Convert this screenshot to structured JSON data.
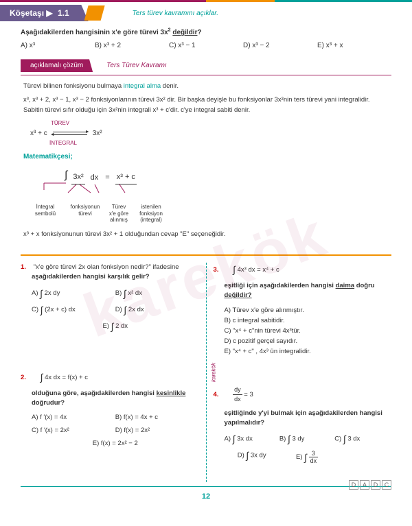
{
  "colors": {
    "brand": "#6a5b8e",
    "accent1": "#a01b5c",
    "accent2": "#f29100",
    "accent3": "#00a19a"
  },
  "header": {
    "badge_prefix": "Köşetaşı ▶",
    "badge_num": "1.1",
    "caption": "Ters türev kavramını açıklar."
  },
  "main_q": {
    "text_a": "Aşağıdakilerden hangisinin x'e göre türevi 3x",
    "text_b": " değildir",
    "text_c": "?",
    "opts": {
      "A": "A) x³",
      "B": "B) x³ + 2",
      "C": "C) x³ − 1",
      "D": "D) x³ − 2",
      "E": "E) x³ + x"
    }
  },
  "tab": {
    "label": "açıklamalı çözüm",
    "title": "Ters Türev Kavramı"
  },
  "solution": {
    "l1a": "Türevi bilinen fonksiyonu bulmaya ",
    "l1b": "integral alma",
    "l1c": " denir.",
    "l2": "x³, x³ + 2, x³ − 1, x³ − 2 fonksiyonlarının türevi 3x² dir. Bir başka deyişle bu fonksiyonlar 3x²nin ters türevi yani integralidir. Sabitin türevi sıfır olduğu için 3x²nin integrali x³ + c'dir. c'ye integral sabiti denir.",
    "d1": {
      "left": "x³ + c",
      "top": "TÜREV",
      "right": "3x²",
      "bot": "İNTEGRAL"
    },
    "math_head": "Matematikçesi;",
    "d2": {
      "lbl_integral": "İntegral\nsembolü",
      "t_3x2": "3x²",
      "t_dx": "dx",
      "t_eq": "=",
      "t_res": "x³ + c",
      "lbl_func": "fonksiyonun\ntürevi",
      "lbl_turev": "Türev\nx'e göre\nalınmış",
      "lbl_ist": "istenilen\nfonksiyon\n(integral)"
    },
    "concl": "x³ + x fonksiyonunun türevi 3x² + 1 olduğundan cevap \"E\" seçeneğidir."
  },
  "q1": {
    "num": "1.",
    "prompt_a": "\"x'e göre türevi 2x olan fonksiyon nedir?\" ifadesine",
    "prompt_b": "aşağıdakilerden hangisi karşılık gelir?",
    "A": "A) ∫ 2x dy",
    "B": "B) ∫ x² dx",
    "C": "C) ∫ (2x + c) dx",
    "D": "D) ∫ 2x dx",
    "E": "E) ∫ 2 dx"
  },
  "q2": {
    "num": "2.",
    "expr": "∫ 4x dx = f(x) + c",
    "prompt_a": "olduğuna göre, aşağıdakilerden hangisi ",
    "prompt_b": "kesinlikle",
    "prompt_c": "doğrudur?",
    "A": "A) f ′(x) = 4x",
    "B": "B) f(x) = 4x + c",
    "C": "C) f ′(x) = 2x²",
    "D": "D) f(x) = 2x²",
    "E": "E) f(x) = 2x² − 2"
  },
  "q3": {
    "num": "3.",
    "expr": "∫ 4x³ dx = x⁴ + c",
    "prompt_a": "eşitliği için aşağıdakilerden hangisi ",
    "prompt_b": "daima",
    "prompt_c": " doğru",
    "prompt_d": "değildir?",
    "A": "A)  Türev x'e göre alınmıştır.",
    "B": "B)  c integral sabitidir.",
    "C": "C)  \"x⁴ + c\"nin türevi 4x³tür.",
    "D": "D)  c pozitif gerçel sayıdır.",
    "E": "E)  \"x⁴ + c\" , 4x³ ün integralidir."
  },
  "q4": {
    "num": "4.",
    "frac_n": "dy",
    "frac_d": "dx",
    "eq_rhs": " = 3",
    "prompt": "eşitliğinde y'yi bulmak için aşağıdakilerden hangisi yapılmalıdır?",
    "A": "A) ∫ 3x dx",
    "B": "B) ∫ 3 dy",
    "C": "C) ∫ 3 dx",
    "D": "D) ∫ 3x dy",
    "E_pre": "E) ∫ ",
    "E_n": "3",
    "E_d": "dx"
  },
  "footer": {
    "page": "12",
    "answers": [
      "D",
      "A",
      "D",
      "C"
    ]
  },
  "watermark": "karekök"
}
